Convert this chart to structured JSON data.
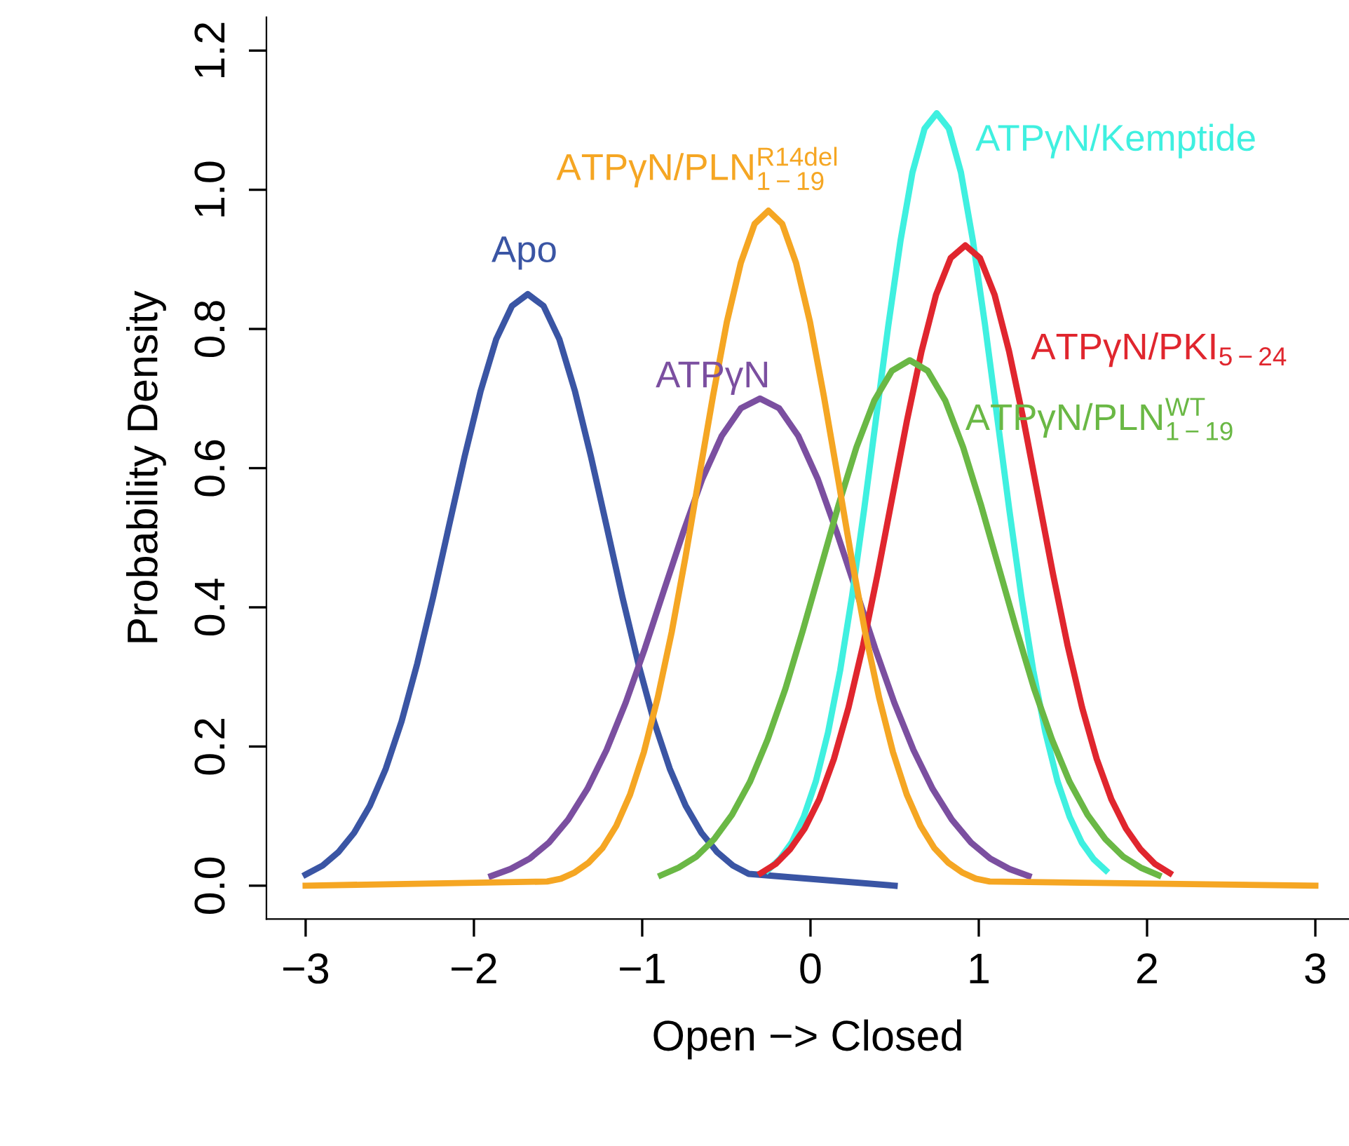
{
  "chart_data": {
    "type": "line",
    "xlabel": "Open −> Closed",
    "ylabel": "Probability Density",
    "series": [
      {
        "name": "Apo",
        "color": "#3a55a4",
        "x": [
          -3,
          -2.899,
          -2.806,
          -2.712,
          -2.618,
          -2.524,
          -2.43,
          -2.337,
          -2.243,
          -2.149,
          -2.055,
          -1.961,
          -1.868,
          -1.774,
          -1.68,
          -1.586,
          -1.492,
          -1.399,
          -1.305,
          -1.211,
          -1.117,
          -1.023,
          -0.93,
          -0.836,
          -0.742,
          -0.648,
          -0.554,
          -0.461,
          -0.367,
          0.5
        ],
        "values": [
          0.016,
          0.029,
          0.048,
          0.076,
          0.115,
          0.168,
          0.236,
          0.319,
          0.414,
          0.516,
          0.617,
          0.71,
          0.785,
          0.833,
          0.85,
          0.833,
          0.785,
          0.71,
          0.617,
          0.516,
          0.414,
          0.319,
          0.236,
          0.168,
          0.115,
          0.076,
          0.048,
          0.029,
          0.017,
          0
        ]
      },
      {
        "name": "ATPγN",
        "color": "#7b4fa0",
        "x": [
          -1.896,
          -1.782,
          -1.668,
          -1.554,
          -1.44,
          -1.326,
          -1.212,
          -1.098,
          -0.984,
          -0.87,
          -0.756,
          -0.642,
          -0.528,
          -0.414,
          -0.3,
          -0.186,
          -0.072,
          0.042,
          0.156,
          0.27,
          0.384,
          0.498,
          0.612,
          0.726,
          0.84,
          0.954,
          1.068,
          1.182,
          1.296
        ],
        "values": [
          0.014,
          0.024,
          0.039,
          0.062,
          0.095,
          0.139,
          0.195,
          0.263,
          0.341,
          0.425,
          0.508,
          0.585,
          0.646,
          0.686,
          0.7,
          0.686,
          0.646,
          0.585,
          0.508,
          0.425,
          0.341,
          0.263,
          0.195,
          0.139,
          0.095,
          0.062,
          0.039,
          0.024,
          0.014
        ]
      },
      {
        "name": "ATPγN/Kemptide",
        "color": "#3ff0e0",
        "x": [
          -0.255,
          -0.183,
          -0.112,
          -0.04,
          0.032,
          0.104,
          0.176,
          0.247,
          0.319,
          0.391,
          0.463,
          0.535,
          0.606,
          0.678,
          0.75,
          0.822,
          0.894,
          0.965,
          1.037,
          1.109,
          1.181,
          1.253,
          1.324,
          1.396,
          1.468,
          1.54,
          1.612,
          1.683,
          1.755
        ],
        "values": [
          0.022,
          0.038,
          0.062,
          0.099,
          0.15,
          0.22,
          0.309,
          0.416,
          0.541,
          0.674,
          0.806,
          0.927,
          1.025,
          1.088,
          1.11,
          1.088,
          1.025,
          0.927,
          0.806,
          0.674,
          0.541,
          0.416,
          0.309,
          0.22,
          0.15,
          0.099,
          0.062,
          0.038,
          0.022
        ]
      },
      {
        "name": "ATPγN/PKI$_{5−24}$",
        "color": "#e0262e",
        "x": [
          -0.295,
          -0.208,
          -0.122,
          -0.035,
          0.052,
          0.139,
          0.226,
          0.312,
          0.399,
          0.486,
          0.573,
          0.66,
          0.746,
          0.833,
          0.92,
          1.007,
          1.094,
          1.18,
          1.267,
          1.354,
          1.441,
          1.528,
          1.614,
          1.701,
          1.788,
          1.875,
          1.962,
          2.048,
          2.135
        ],
        "values": [
          0.018,
          0.031,
          0.052,
          0.082,
          0.124,
          0.182,
          0.256,
          0.345,
          0.448,
          0.558,
          0.668,
          0.768,
          0.849,
          0.902,
          0.92,
          0.902,
          0.849,
          0.768,
          0.668,
          0.558,
          0.448,
          0.345,
          0.256,
          0.182,
          0.124,
          0.082,
          0.052,
          0.031,
          0.018
        ]
      },
      {
        "name": "ATPγN/PLN$^{WT}$$_{1−19}$",
        "color": "#6ab845",
        "x": [
          -0.888,
          -0.783,
          -0.677,
          -0.572,
          -0.466,
          -0.36,
          -0.255,
          -0.149,
          -0.044,
          0.062,
          0.168,
          0.273,
          0.379,
          0.484,
          0.59,
          0.696,
          0.801,
          0.907,
          1.012,
          1.118,
          1.224,
          1.329,
          1.435,
          1.54,
          1.646,
          1.752,
          1.857,
          1.962,
          2.068
        ],
        "values": [
          0.015,
          0.026,
          0.042,
          0.067,
          0.102,
          0.149,
          0.21,
          0.283,
          0.368,
          0.458,
          0.548,
          0.63,
          0.697,
          0.74,
          0.755,
          0.74,
          0.697,
          0.63,
          0.548,
          0.458,
          0.368,
          0.283,
          0.21,
          0.149,
          0.102,
          0.067,
          0.042,
          0.026,
          0.015
        ]
      },
      {
        "name": "ATPγN/PLN$^{R14del}$$_{1−19}$",
        "color": "#f5a623",
        "x": [
          -3,
          -1.565,
          -1.483,
          -1.401,
          -1.319,
          -1.236,
          -1.154,
          -1.072,
          -0.99,
          -0.908,
          -0.825,
          -0.743,
          -0.661,
          -0.579,
          -0.497,
          -0.414,
          -0.332,
          -0.25,
          -0.168,
          -0.086,
          -0.003,
          0.079,
          0.161,
          0.243,
          0.325,
          0.408,
          0.49,
          0.572,
          0.654,
          0.736,
          0.819,
          0.901,
          0.983,
          1.065,
          3
        ],
        "values": [
          0,
          0.006,
          0.01,
          0.019,
          0.033,
          0.054,
          0.086,
          0.131,
          0.192,
          0.27,
          0.364,
          0.472,
          0.589,
          0.704,
          0.81,
          0.895,
          0.951,
          0.97,
          0.951,
          0.895,
          0.81,
          0.704,
          0.589,
          0.472,
          0.364,
          0.27,
          0.192,
          0.131,
          0.086,
          0.054,
          0.033,
          0.019,
          0.01,
          0.006,
          0
        ]
      }
    ],
    "xlim": [
      -3.233,
      3.2
    ],
    "ylim": [
      -0.048,
      1.248
    ],
    "xticks": [
      {
        "value": -3,
        "label": "−3"
      },
      {
        "value": -2,
        "label": "−2"
      },
      {
        "value": -1,
        "label": "−1"
      },
      0,
      1,
      2,
      3
    ],
    "yticks": [
      {
        "value": 0,
        "label": "0.0"
      },
      0.2,
      0.4,
      0.6,
      0.8,
      {
        "value": 1,
        "label": "1.0"
      },
      1.2
    ],
    "grid": false,
    "legend": false,
    "line_style": "solid",
    "marker": "none"
  }
}
